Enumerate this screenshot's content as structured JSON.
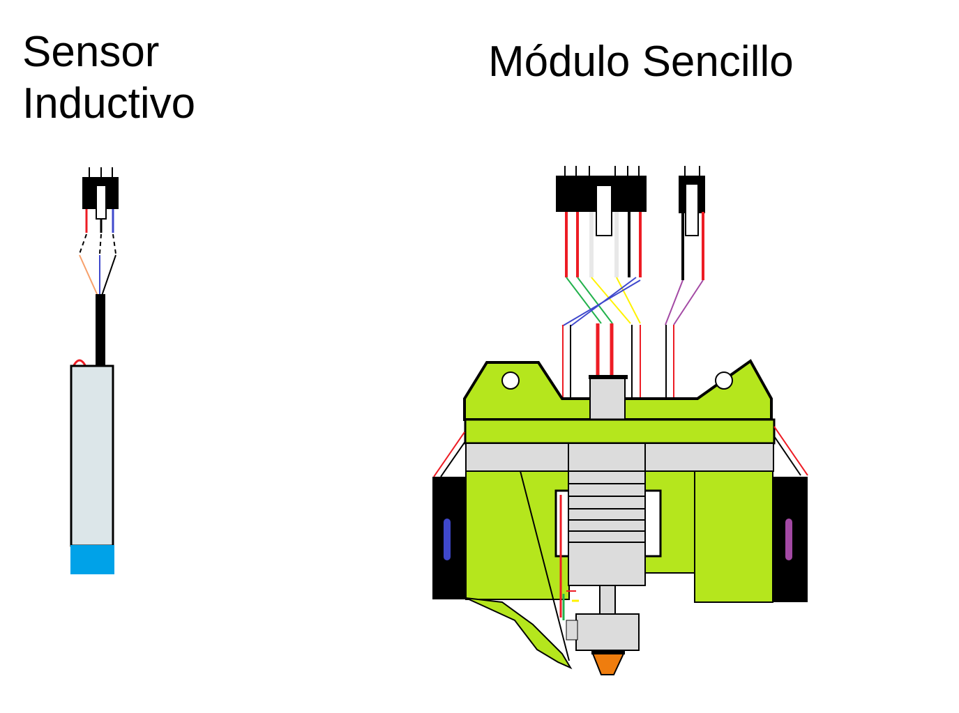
{
  "titles": {
    "sensor": "Sensor\nInductivo",
    "module": "Módulo Sencillo"
  },
  "colors": {
    "frame_green": "#b5e61d",
    "dark_outline": "#000000",
    "metal_gray": "#dcdcdc",
    "sensor_body": "#dce6e9",
    "sensor_tip": "#00a2e8",
    "nozzle_orange": "#ef7d0e",
    "wire_red": "#ed1c24",
    "wire_blue": "#3f48cc",
    "wire_green": "#22b14c",
    "wire_yellow": "#fff200",
    "wire_purple": "#a349a4",
    "wire_orange": "#f7a06b",
    "wire_white": "#e8e8e8"
  },
  "icons": {
    "sensor_connector": "3-pin-connector-icon",
    "module_connector_main": "6-pin-connector-icon",
    "module_connector_fan": "2-pin-connector-icon",
    "inductive_sensor": "inductive-probe-icon",
    "hotend": "hotend-icon",
    "fan_left": "fan-blower-icon",
    "fan_right": "fan-blower-icon"
  }
}
